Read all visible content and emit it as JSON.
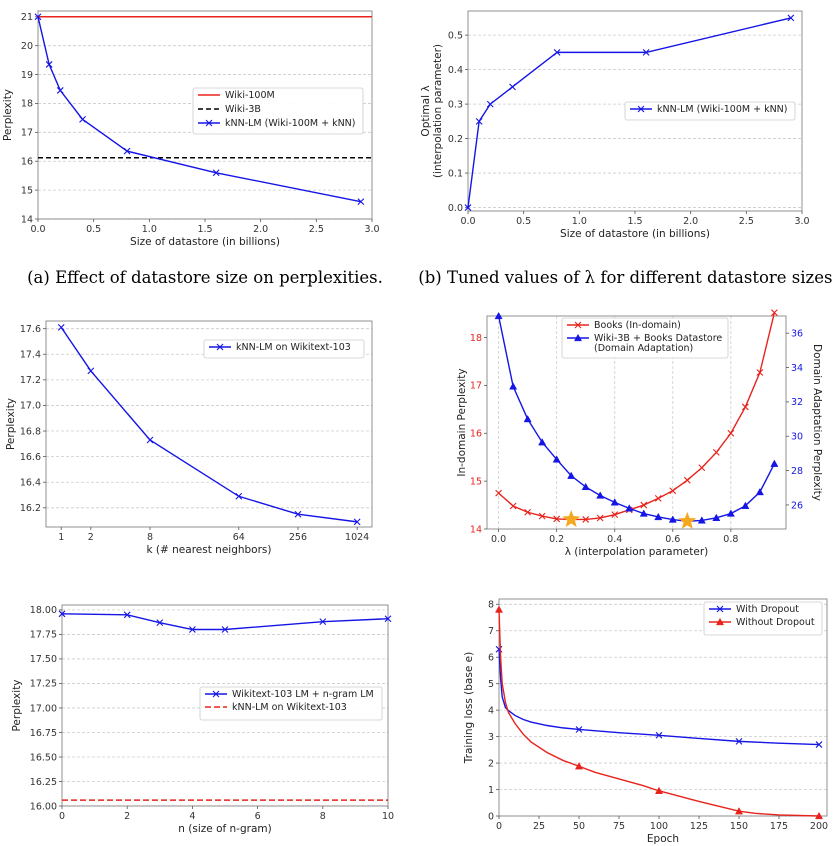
{
  "captions": {
    "a": "(a) Effect of datastore size on perplexities.",
    "b": "(b) Tuned values of λ for different datastore sizes."
  },
  "colors": {
    "red": "#e8231c",
    "blue": "#1515e6",
    "black": "#000000",
    "grid": "#cccccc",
    "star": "#f5a81e"
  },
  "chart_data": [
    {
      "id": "p1",
      "type": "line",
      "xlabel": "Size of datastore (in billions)",
      "ylabel": "Perplexity",
      "xlim": [
        0,
        3.0
      ],
      "ylim": [
        14,
        21.2
      ],
      "xticks": [
        0,
        0.5,
        1.0,
        1.5,
        2.0,
        2.5,
        3.0
      ],
      "xtick_labels": [
        "0.0",
        "0.5",
        "1.0",
        "1.5",
        "2.0",
        "2.5",
        "3.0"
      ],
      "yticks": [
        14,
        15,
        16,
        17,
        18,
        19,
        20,
        21
      ],
      "ytick_labels": [
        "14",
        "15",
        "16",
        "17",
        "18",
        "19",
        "20",
        "21"
      ],
      "grid": "y",
      "legend_position": "center-right",
      "series": [
        {
          "name": "Wiki-100M",
          "kind": "hline",
          "y": 21.0,
          "color": "#e8231c",
          "dash": "none"
        },
        {
          "name": "Wiki-3B",
          "kind": "hline",
          "y": 16.12,
          "color": "#000000",
          "dash": "5,3"
        },
        {
          "name": "kNN-LM (Wiki-100M + kNN)",
          "kind": "line",
          "marker": "x",
          "color": "#1515e6",
          "x": [
            0,
            0.1,
            0.2,
            0.4,
            0.8,
            1.6,
            2.9
          ],
          "y": [
            21.0,
            19.35,
            18.45,
            17.45,
            16.35,
            15.6,
            14.6
          ]
        }
      ]
    },
    {
      "id": "p2",
      "type": "line",
      "xlabel": "Size of datastore (in billions)",
      "ylabel": "Optimal λ",
      "ylabel2": "(interpolation parameter)",
      "xlim": [
        0,
        3.0
      ],
      "ylim": [
        -0.01,
        0.57
      ],
      "xticks": [
        0,
        0.5,
        1.0,
        1.5,
        2.0,
        2.5,
        3.0
      ],
      "xtick_labels": [
        "0.0",
        "0.5",
        "1.0",
        "1.5",
        "2.0",
        "2.5",
        "3.0"
      ],
      "yticks": [
        0,
        0.1,
        0.2,
        0.3,
        0.4,
        0.5
      ],
      "ytick_labels": [
        "0.0",
        "0.1",
        "0.2",
        "0.3",
        "0.4",
        "0.5"
      ],
      "grid": "y",
      "legend_position": "center-right",
      "series": [
        {
          "name": "kNN-LM (Wiki-100M + kNN)",
          "kind": "line",
          "marker": "x",
          "color": "#1515e6",
          "x": [
            0,
            0.1,
            0.2,
            0.4,
            0.8,
            1.6,
            2.9
          ],
          "y": [
            0.0,
            0.25,
            0.3,
            0.35,
            0.45,
            0.45,
            0.55
          ]
        }
      ]
    },
    {
      "id": "p3",
      "type": "line",
      "xlabel": "k (# nearest neighbors)",
      "ylabel": "Perplexity",
      "xscale": "log2",
      "xlim": [
        0.7,
        1450
      ],
      "ylim": [
        16.05,
        17.66
      ],
      "xticks": [
        1,
        2,
        8,
        64,
        256,
        1024
      ],
      "xtick_labels": [
        "1",
        "2",
        "8",
        "64",
        "256",
        "1024"
      ],
      "yticks": [
        16.2,
        16.4,
        16.6,
        16.8,
        17.0,
        17.2,
        17.4,
        17.6
      ],
      "ytick_labels": [
        "16.2",
        "16.4",
        "16.6",
        "16.8",
        "17.0",
        "17.2",
        "17.4",
        "17.6"
      ],
      "grid": "y",
      "legend_position": "top-right",
      "series": [
        {
          "name": "kNN-LM on Wikitext-103",
          "kind": "line",
          "marker": "x",
          "color": "#1515e6",
          "x": [
            1,
            2,
            8,
            64,
            256,
            1024
          ],
          "y": [
            17.61,
            17.27,
            16.73,
            16.29,
            16.15,
            16.09
          ]
        }
      ]
    },
    {
      "id": "p4",
      "type": "line",
      "xlabel": "λ (interpolation parameter)",
      "ylabel": "In-domain Perplexity",
      "ylabel_right": "Domain Adaptation Perplexity",
      "xlim": [
        -0.04,
        0.99
      ],
      "ylim": [
        14.0,
        18.45
      ],
      "ylim_right": [
        24.6,
        37.0
      ],
      "xticks": [
        0,
        0.2,
        0.4,
        0.6,
        0.8
      ],
      "xtick_labels": [
        "0.0",
        "0.2",
        "0.4",
        "0.6",
        "0.8"
      ],
      "yticks": [
        14,
        15,
        16,
        17,
        18
      ],
      "ytick_labels": [
        "14",
        "15",
        "16",
        "17",
        "18"
      ],
      "yticks_right": [
        26,
        28,
        30,
        32,
        34,
        36
      ],
      "ytick_labels_right": [
        "26",
        "28",
        "30",
        "32",
        "34",
        "36"
      ],
      "grid": "x",
      "legend_position": "top-center",
      "series": [
        {
          "name": "Books (In-domain)",
          "axis": "left",
          "kind": "line",
          "marker": "x",
          "color": "#e8231c",
          "x": [
            0,
            0.05,
            0.1,
            0.15,
            0.2,
            0.25,
            0.3,
            0.35,
            0.4,
            0.45,
            0.5,
            0.55,
            0.6,
            0.65,
            0.7,
            0.75,
            0.8,
            0.85,
            0.9,
            0.95
          ],
          "y": [
            14.75,
            14.48,
            14.35,
            14.27,
            14.21,
            14.2,
            14.2,
            14.23,
            14.3,
            14.4,
            14.5,
            14.64,
            14.8,
            15.02,
            15.28,
            15.6,
            16.0,
            16.55,
            17.27,
            18.52
          ]
        },
        {
          "name": "Wiki-3B + Books Datastore",
          "name_line2": "(Domain Adaptation)",
          "axis": "right",
          "kind": "line",
          "marker": "triangle",
          "color": "#1515e6",
          "x": [
            0,
            0.05,
            0.1,
            0.15,
            0.2,
            0.25,
            0.3,
            0.35,
            0.4,
            0.45,
            0.5,
            0.55,
            0.6,
            0.65,
            0.7,
            0.75,
            0.8,
            0.85,
            0.9,
            0.95
          ],
          "y": [
            37.0,
            32.9,
            31.0,
            29.65,
            28.65,
            27.7,
            27.05,
            26.55,
            26.15,
            25.8,
            25.5,
            25.3,
            25.15,
            25.05,
            25.1,
            25.25,
            25.5,
            25.95,
            26.75,
            28.4
          ]
        }
      ],
      "stars": [
        {
          "x": 0.25,
          "y": 14.2,
          "axis": "left"
        },
        {
          "x": 0.65,
          "y": 25.05,
          "axis": "right"
        }
      ]
    },
    {
      "id": "p5",
      "type": "line",
      "xlabel": "n (size of n-gram)",
      "ylabel": "Perplexity",
      "xlim": [
        0,
        10
      ],
      "ylim": [
        16.0,
        18.05
      ],
      "xticks": [
        0,
        2,
        4,
        6,
        8,
        10
      ],
      "xtick_labels": [
        "0",
        "2",
        "4",
        "6",
        "8",
        "10"
      ],
      "yticks": [
        16.0,
        16.25,
        16.5,
        16.75,
        17.0,
        17.25,
        17.5,
        17.75,
        18.0
      ],
      "ytick_labels": [
        "16.00",
        "16.25",
        "16.50",
        "16.75",
        "17.00",
        "17.25",
        "17.50",
        "17.75",
        "18.00"
      ],
      "grid": "y",
      "legend_position": "center-right",
      "series": [
        {
          "name": "Wikitext-103 LM + n-gram LM",
          "kind": "line",
          "marker": "x",
          "color": "#1515e6",
          "x": [
            0,
            2,
            3,
            4,
            5,
            8,
            10
          ],
          "y": [
            17.96,
            17.95,
            17.87,
            17.8,
            17.8,
            17.88,
            17.91
          ]
        },
        {
          "name": "kNN-LM on Wikitext-103",
          "kind": "hline",
          "y": 16.06,
          "color": "#e8231c",
          "dash": "6,3"
        }
      ]
    },
    {
      "id": "p6",
      "type": "line",
      "xlabel": "Epoch",
      "ylabel": "Training loss (base e)",
      "xlim": [
        0,
        205
      ],
      "ylim": [
        0,
        8.2
      ],
      "xticks": [
        0,
        25,
        50,
        75,
        100,
        125,
        150,
        175,
        200
      ],
      "xtick_labels": [
        "0",
        "25",
        "50",
        "75",
        "100",
        "125",
        "150",
        "175",
        "200"
      ],
      "yticks": [
        0,
        1,
        2,
        3,
        4,
        5,
        6,
        7,
        8
      ],
      "ytick_labels": [
        "0",
        "1",
        "2",
        "3",
        "4",
        "5",
        "6",
        "7",
        "8"
      ],
      "grid": "y",
      "legend_position": "top-right",
      "series": [
        {
          "name": "With Dropout",
          "kind": "line",
          "marker": "x",
          "marker_x": [
            0,
            50,
            100,
            150,
            200
          ],
          "color": "#1515e6",
          "x": [
            0,
            1,
            2,
            4,
            6,
            10,
            15,
            20,
            30,
            40,
            50,
            75,
            100,
            125,
            150,
            175,
            200
          ],
          "y": [
            6.3,
            5.2,
            4.5,
            4.1,
            3.98,
            3.8,
            3.65,
            3.55,
            3.42,
            3.33,
            3.27,
            3.15,
            3.05,
            2.93,
            2.82,
            2.75,
            2.7
          ]
        },
        {
          "name": "Without Dropout",
          "kind": "line",
          "marker": "triangle",
          "marker_x": [
            0,
            50,
            100,
            150,
            200
          ],
          "color": "#e8231c",
          "x": [
            0,
            1,
            2,
            4,
            6,
            10,
            15,
            20,
            30,
            40,
            50,
            60,
            75,
            90,
            100,
            125,
            150,
            160,
            175,
            200
          ],
          "y": [
            7.8,
            6.0,
            5.0,
            4.3,
            3.9,
            3.5,
            3.1,
            2.8,
            2.4,
            2.1,
            1.88,
            1.65,
            1.4,
            1.15,
            0.95,
            0.55,
            0.18,
            0.1,
            0.04,
            0.0
          ]
        }
      ]
    }
  ]
}
